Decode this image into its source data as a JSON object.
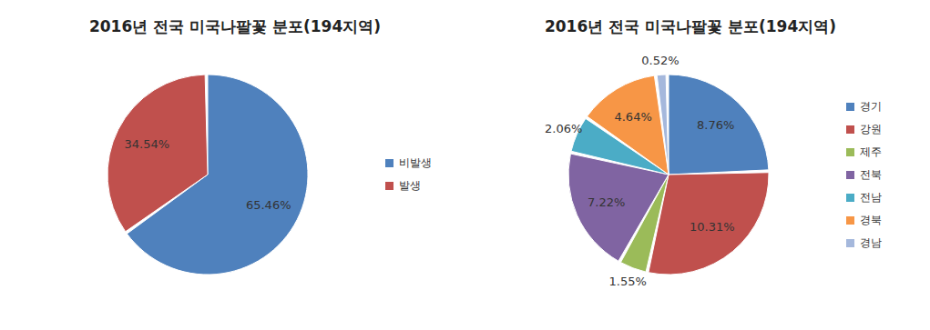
{
  "chart_data": [
    {
      "type": "pie",
      "title": "2016년 전국 미국나팔꽃 분포(194지역)",
      "categories": [
        "비발생",
        "발생"
      ],
      "values": [
        65.46,
        34.54
      ],
      "value_labels": [
        "65.46%",
        "34.54%"
      ],
      "colors": [
        "#4f81bd",
        "#c0504d"
      ],
      "data_labels": true,
      "legend": "right"
    },
    {
      "type": "pie",
      "title": "2016년 전국 미국나팔꽃 분포(194지역)",
      "categories": [
        "경기",
        "강원",
        "제주",
        "전북",
        "전남",
        "경북",
        "경남"
      ],
      "values": [
        8.76,
        10.31,
        1.55,
        7.22,
        2.06,
        4.64,
        0.52
      ],
      "value_labels": [
        "8.76%",
        "10.31%",
        "1.55%",
        "7.22%",
        "2.06%",
        "4.64%",
        "0.52%"
      ],
      "colors": [
        "#4f81bd",
        "#c0504d",
        "#9bbb59",
        "#8064a2",
        "#4bacc6",
        "#f79646",
        "#a5b8dc"
      ],
      "data_labels": true,
      "legend": "right"
    }
  ]
}
